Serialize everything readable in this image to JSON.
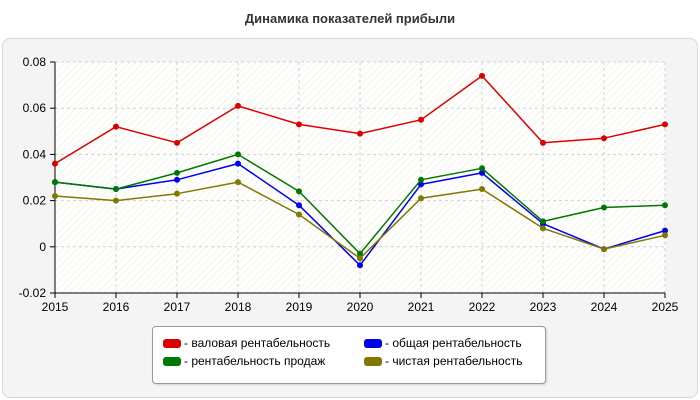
{
  "title": "Динамика показателей прибыли",
  "colors": {
    "background_panel": "#f4f4f4",
    "plot_background": "#ffffff",
    "grid": "#d0d0d0"
  },
  "chart_data": {
    "type": "line",
    "title": "Динамика показателей прибыли",
    "xlabel": "",
    "ylabel": "",
    "x": [
      "2015",
      "2016",
      "2017",
      "2018",
      "2019",
      "2020",
      "2021",
      "2022",
      "2023",
      "2024",
      "2025"
    ],
    "ylim": [
      -0.02,
      0.08
    ],
    "yticks": [
      -0.02,
      0,
      0.02,
      0.04,
      0.06,
      0.08
    ],
    "ytick_labels": [
      "-0.02",
      "0",
      "0.02",
      "0.04",
      "0.06",
      "0.08"
    ],
    "grid": true,
    "legend_position": "bottom",
    "series": [
      {
        "name": "- валовая рентабельность",
        "color": "#dd0000",
        "values": [
          0.036,
          0.052,
          0.045,
          0.061,
          0.053,
          0.049,
          0.055,
          0.074,
          0.045,
          0.047,
          0.053
        ]
      },
      {
        "name": "- общая рентабельность",
        "color": "#0000ee",
        "values": [
          0.028,
          0.025,
          0.029,
          0.036,
          0.018,
          -0.008,
          0.027,
          0.032,
          0.01,
          -0.001,
          0.007
        ]
      },
      {
        "name": "- рентабельность продаж",
        "color": "#007700",
        "values": [
          0.028,
          0.025,
          0.032,
          0.04,
          0.024,
          -0.003,
          0.029,
          0.034,
          0.011,
          0.017,
          0.018
        ]
      },
      {
        "name": "- чистая рентабельность",
        "color": "#807800",
        "values": [
          0.022,
          0.02,
          0.023,
          0.028,
          0.014,
          -0.005,
          0.021,
          0.025,
          0.008,
          -0.001,
          0.005
        ]
      }
    ]
  }
}
